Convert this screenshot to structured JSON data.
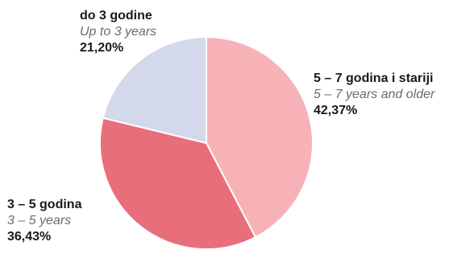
{
  "chart_data": {
    "type": "pie",
    "start_angle_deg": 0,
    "direction": "clockwise",
    "slices": [
      {
        "label": "5 – 7 godina i stariji",
        "label_en": "5 – 7 years and older",
        "value": 42.37,
        "value_label": "42,37%",
        "color": "#f7b2b7"
      },
      {
        "label": "3 – 5 godina",
        "label_en": "3 – 5 years",
        "value": 36.43,
        "value_label": "36,43%",
        "color": "#e86e7c"
      },
      {
        "label": "do 3 godine",
        "label_en": "Up to 3 years",
        "value": 21.2,
        "value_label": "21,20%",
        "color": "#d3d9ea"
      }
    ]
  }
}
